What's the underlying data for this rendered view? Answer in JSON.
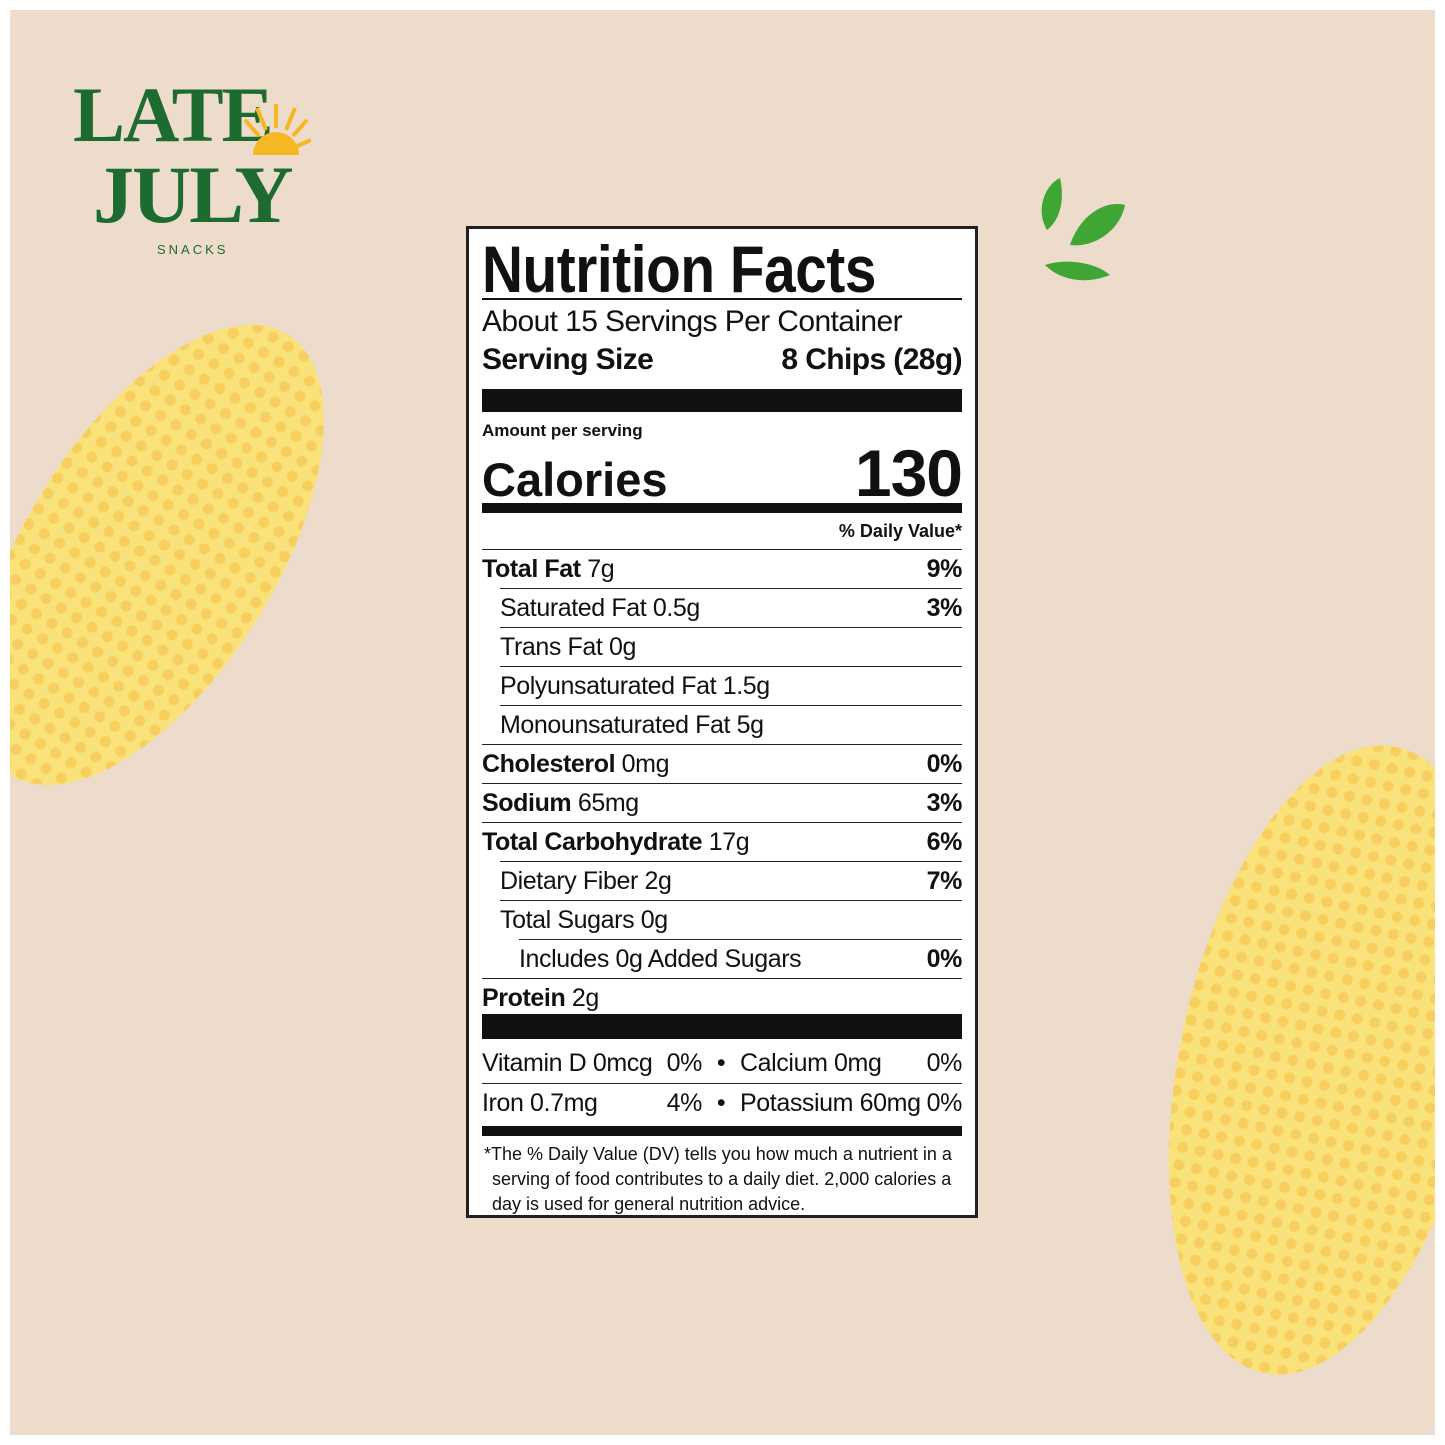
{
  "brand": {
    "name": "LATE JULY",
    "line1": "LATE",
    "line2": "JULY",
    "sub": "SNACKS",
    "colors": {
      "green": "#1e6b32",
      "sun": "#f5b823"
    }
  },
  "label": {
    "title": "Nutrition Facts",
    "servings": "About 15 Servings Per Container",
    "serving_size_label": "Serving Size",
    "serving_size_value": "8 Chips (28g)",
    "amount_per_serving": "Amount per serving",
    "calories_label": "Calories",
    "calories_value": "130",
    "dv_header": "% Daily Value*",
    "nutrients": [
      {
        "name": "Total Fat",
        "amount": "7g",
        "dv": "9%",
        "bold": true,
        "indent": 0
      },
      {
        "name": "Saturated Fat",
        "amount": "0.5g",
        "dv": "3%",
        "bold": false,
        "indent": 1
      },
      {
        "name": "Trans Fat",
        "amount": "0g",
        "dv": "",
        "bold": false,
        "indent": 1
      },
      {
        "name": "Polyunsaturated Fat",
        "amount": "1.5g",
        "dv": "",
        "bold": false,
        "indent": 1
      },
      {
        "name": "Monounsaturated Fat",
        "amount": "5g",
        "dv": "",
        "bold": false,
        "indent": 1
      },
      {
        "name": "Cholesterol",
        "amount": "0mg",
        "dv": "0%",
        "bold": true,
        "indent": 0
      },
      {
        "name": "Sodium",
        "amount": "65mg",
        "dv": "3%",
        "bold": true,
        "indent": 0
      },
      {
        "name": "Total Carbohydrate",
        "amount": "17g",
        "dv": "6%",
        "bold": true,
        "indent": 0
      },
      {
        "name": "Dietary Fiber",
        "amount": "2g",
        "dv": "7%",
        "bold": false,
        "indent": 1
      },
      {
        "name": "Total Sugars",
        "amount": "0g",
        "dv": "",
        "bold": false,
        "indent": 1
      },
      {
        "name": "Includes 0g Added Sugars",
        "amount": "",
        "dv": "0%",
        "bold": false,
        "indent": 2
      },
      {
        "name": "Protein",
        "amount": "2g",
        "dv": "",
        "bold": true,
        "indent": 0
      }
    ],
    "vitamins": [
      {
        "left_name": "Vitamin D 0mcg",
        "left_dv": "0%",
        "right_name": "Calcium 0mg",
        "right_dv": "0%"
      },
      {
        "left_name": "Iron 0.7mg",
        "left_dv": "4%",
        "right_name": "Potassium 60mg",
        "right_dv": "0%"
      }
    ],
    "footnote": "The % Daily Value (DV) tells you how much a nutrient in a serving of food contributes to a daily diet. 2,000 calories a day is used for general nutrition advice."
  }
}
